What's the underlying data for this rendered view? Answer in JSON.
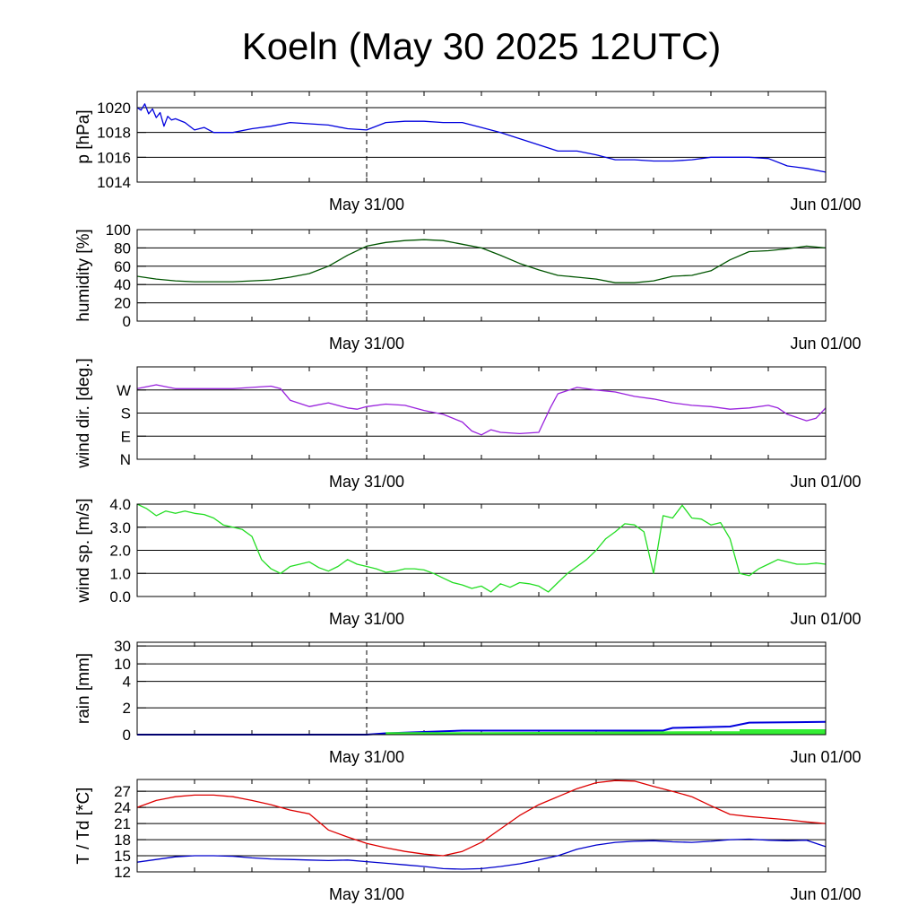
{
  "title": "Koeln (May 30 2025 12UTC)",
  "x_tick_labels": [
    "May 31/00",
    "Jun 01/00"
  ],
  "chart_data": [
    {
      "type": "line",
      "ylabel": "p [hPa]",
      "ylim": [
        1014,
        1021.3
      ],
      "yticks": [
        1014,
        1016,
        1018,
        1020
      ],
      "ytick_labels": [
        "1014",
        "1016",
        "1018",
        "1020"
      ],
      "x": [
        0,
        0.2,
        0.4,
        0.6,
        0.8,
        1.0,
        1.2,
        1.4,
        1.6,
        1.8,
        2.0,
        2.5,
        3,
        3.5,
        4,
        4.5,
        5,
        6,
        7,
        8,
        9,
        10,
        11,
        12,
        13,
        14,
        15,
        16,
        17,
        18,
        19,
        20,
        21,
        22,
        23,
        24,
        25,
        26,
        27,
        28,
        29,
        30,
        31,
        32,
        33,
        34,
        35,
        36
      ],
      "series": [
        {
          "color": "#0000dd",
          "values": [
            1020.0,
            1019.8,
            1020.3,
            1019.5,
            1019.9,
            1019.2,
            1019.6,
            1018.5,
            1019.3,
            1019.0,
            1019.1,
            1018.8,
            1018.2,
            1018.4,
            1018.0,
            1018.0,
            1018.0,
            1018.3,
            1018.5,
            1018.8,
            1018.7,
            1018.6,
            1018.3,
            1018.2,
            1018.8,
            1018.9,
            1018.9,
            1018.8,
            1018.8,
            1018.4,
            1018.0,
            1017.5,
            1017.0,
            1016.5,
            1016.5,
            1016.2,
            1015.8,
            1015.8,
            1015.7,
            1015.7,
            1015.8,
            1016.0,
            1016.0,
            1016.0,
            1015.9,
            1015.3,
            1015.1,
            1014.8
          ]
        }
      ]
    },
    {
      "type": "line",
      "ylabel": "humidity [%]",
      "ylim": [
        0,
        100
      ],
      "yticks": [
        0,
        20,
        40,
        60,
        80,
        100
      ],
      "ytick_labels": [
        "0",
        "20",
        "40",
        "60",
        "80",
        "100"
      ],
      "x": [
        0,
        1,
        2,
        3,
        4,
        5,
        6,
        7,
        8,
        9,
        10,
        11,
        12,
        13,
        14,
        15,
        16,
        17,
        18,
        19,
        20,
        21,
        22,
        23,
        24,
        25,
        26,
        27,
        28,
        29,
        30,
        31,
        32,
        33,
        34,
        35,
        36
      ],
      "series": [
        {
          "color": "#005500",
          "values": [
            49,
            46,
            44,
            43,
            43,
            43,
            44,
            45,
            48,
            52,
            60,
            72,
            82,
            86,
            88,
            89,
            88,
            84,
            80,
            72,
            63,
            56,
            50,
            48,
            46,
            42,
            42,
            44,
            49,
            50,
            55,
            67,
            76,
            77,
            79,
            82,
            80
          ]
        }
      ]
    },
    {
      "type": "line",
      "ylabel": "wind dir. [deg.]",
      "ylim": [
        0,
        360
      ],
      "yticks": [
        0,
        90,
        180,
        270
      ],
      "ytick_labels": [
        "N",
        "E",
        "S",
        "W"
      ],
      "x": [
        0,
        1,
        2,
        3,
        4,
        5,
        6,
        7,
        7.5,
        8,
        9,
        10,
        11,
        11.5,
        12,
        13,
        14,
        15,
        16,
        17,
        17.5,
        18,
        18.5,
        19,
        20,
        21,
        21.6,
        22,
        23,
        24,
        25,
        26,
        27,
        28,
        29,
        30,
        31,
        32,
        33,
        33.5,
        34,
        35,
        35.5,
        36
      ],
      "series": [
        {
          "color": "#9922dd",
          "values": [
            275,
            290,
            275,
            275,
            275,
            275,
            280,
            285,
            275,
            230,
            205,
            220,
            200,
            195,
            205,
            215,
            210,
            190,
            175,
            145,
            110,
            95,
            115,
            105,
            100,
            105,
            200,
            255,
            280,
            270,
            262,
            245,
            235,
            220,
            210,
            205,
            195,
            200,
            210,
            200,
            175,
            150,
            160,
            200
          ]
        }
      ]
    },
    {
      "type": "line",
      "ylabel": "wind sp. [m/s]",
      "ylim": [
        0,
        4
      ],
      "yticks": [
        0,
        1,
        2,
        3,
        4
      ],
      "ytick_labels": [
        "0.0",
        "1.0",
        "2.0",
        "3.0",
        "4.0"
      ],
      "x": [
        0,
        0.5,
        1,
        1.5,
        2,
        2.5,
        3,
        3.5,
        4,
        4.5,
        5,
        5.5,
        6,
        6.5,
        7,
        7.5,
        8,
        8.5,
        9,
        9.5,
        10,
        10.5,
        11,
        11.5,
        12,
        12.5,
        13,
        13.5,
        14,
        14.5,
        15,
        15.5,
        16,
        16.5,
        17,
        17.5,
        18,
        18.5,
        19,
        19.5,
        20,
        20.5,
        21,
        21.5,
        22,
        22.5,
        23,
        23.5,
        24,
        24.5,
        25,
        25.5,
        26,
        26.5,
        27,
        27.5,
        28,
        28.5,
        29,
        29.5,
        30,
        30.5,
        31,
        31.5,
        32,
        32.5,
        33,
        33.5,
        34,
        34.5,
        35,
        35.5,
        36
      ],
      "series": [
        {
          "color": "#22dd22",
          "values": [
            4.0,
            3.8,
            3.5,
            3.7,
            3.6,
            3.7,
            3.6,
            3.55,
            3.4,
            3.1,
            3.0,
            2.9,
            2.6,
            1.6,
            1.2,
            1.0,
            1.3,
            1.4,
            1.5,
            1.25,
            1.1,
            1.3,
            1.6,
            1.4,
            1.3,
            1.2,
            1.05,
            1.1,
            1.2,
            1.2,
            1.15,
            1.0,
            0.8,
            0.6,
            0.5,
            0.35,
            0.45,
            0.2,
            0.55,
            0.4,
            0.6,
            0.55,
            0.45,
            0.2,
            0.6,
            1.0,
            1.3,
            1.6,
            2.0,
            2.5,
            2.8,
            3.15,
            3.1,
            2.8,
            1.0,
            3.5,
            3.4,
            3.95,
            3.4,
            3.35,
            3.1,
            3.2,
            2.5,
            1.0,
            0.9,
            1.2,
            1.4,
            1.6,
            1.5,
            1.4,
            1.4,
            1.45,
            1.4
          ]
        }
      ]
    },
    {
      "type": "area",
      "ylabel": "rain [mm]",
      "y_scale": "nonlinear",
      "ylim": [
        0,
        30
      ],
      "yticks": [
        0,
        2,
        4,
        10,
        30
      ],
      "ytick_labels": [
        "0",
        "2",
        "4",
        "10",
        "30"
      ],
      "series": [
        {
          "color": "#0000dd",
          "x": [
            0,
            12,
            13,
            15,
            17,
            27.5,
            28,
            31,
            32,
            36
          ],
          "values": [
            0,
            0,
            0.1,
            0.2,
            0.3,
            0.3,
            0.5,
            0.6,
            0.9,
            0.95
          ]
        },
        {
          "color": "#33ee33",
          "x": [
            13,
            18,
            28.5,
            31.5,
            31.5,
            36
          ],
          "values": [
            0.18,
            0.18,
            0.25,
            0.25,
            0.4,
            0.4
          ]
        }
      ]
    },
    {
      "type": "line",
      "ylabel": "T / Td [*C]",
      "ylim": [
        12,
        29.2
      ],
      "yticks": [
        12,
        15,
        18,
        21,
        24,
        27
      ],
      "ytick_labels": [
        "12",
        "15",
        "18",
        "21",
        "24",
        "27"
      ],
      "x": [
        0,
        1,
        2,
        3,
        4,
        5,
        6,
        7,
        8,
        9,
        10,
        11,
        12,
        13,
        14,
        15,
        16,
        17,
        18,
        19,
        20,
        21,
        22,
        23,
        24,
        25,
        26,
        27,
        28,
        29,
        30,
        31,
        32,
        33,
        34,
        35,
        36
      ],
      "series": [
        {
          "color": "#dd0000",
          "values": [
            24.0,
            25.3,
            26.0,
            26.3,
            26.3,
            26.0,
            25.3,
            24.5,
            23.5,
            22.8,
            19.8,
            18.5,
            17.3,
            16.5,
            15.8,
            15.3,
            15.0,
            15.8,
            17.5,
            20.0,
            22.5,
            24.5,
            26.0,
            27.5,
            28.6,
            29.0,
            28.9,
            27.9,
            27.0,
            26.0,
            24.3,
            22.7,
            22.3,
            22.0,
            21.7,
            21.3,
            21.0
          ]
        },
        {
          "color": "#0000cc",
          "values": [
            13.8,
            14.3,
            14.8,
            15.0,
            15.0,
            14.9,
            14.6,
            14.4,
            14.3,
            14.2,
            14.1,
            14.2,
            13.9,
            13.6,
            13.3,
            13.0,
            12.6,
            12.5,
            12.6,
            13.0,
            13.5,
            14.2,
            15.0,
            16.2,
            17.0,
            17.5,
            17.7,
            17.8,
            17.6,
            17.5,
            17.7,
            18.0,
            18.1,
            17.9,
            17.8,
            17.9,
            16.7
          ]
        }
      ]
    }
  ]
}
